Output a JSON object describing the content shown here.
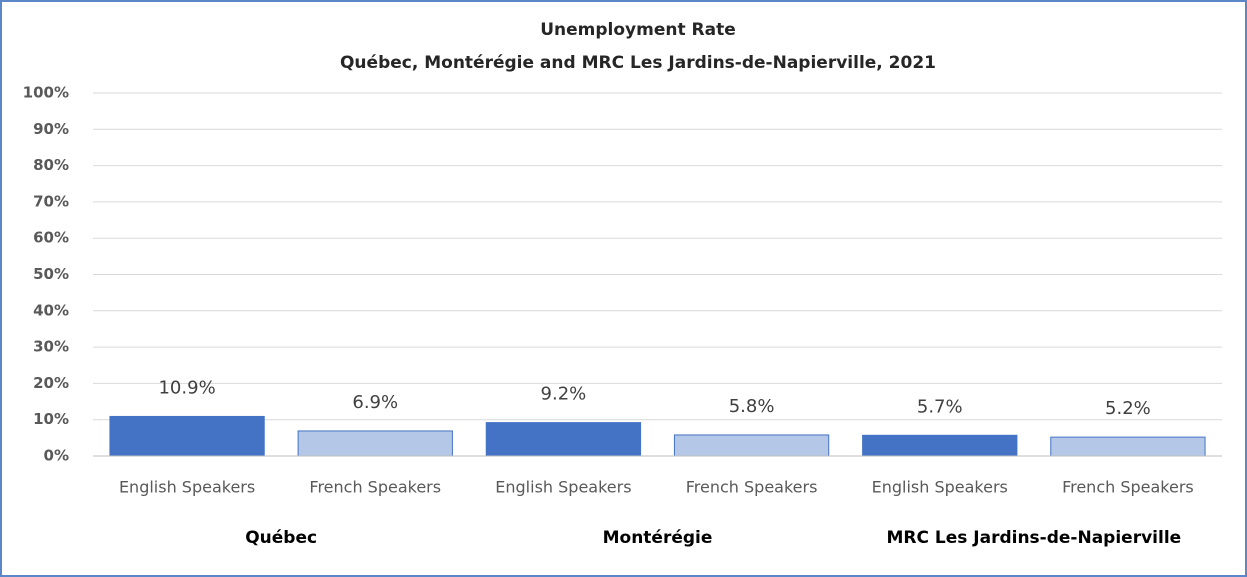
{
  "chart_data": {
    "type": "bar",
    "title": "Unemployment Rate",
    "subtitle": "Québec, Montérégie and MRC Les Jardins-de-Napierville,  2021",
    "groups": [
      {
        "name": "Québec",
        "categories": [
          "English Speakers",
          "French Speakers"
        ],
        "values": [
          10.9,
          6.9
        ],
        "value_labels": [
          "10.9%",
          "6.9%"
        ],
        "colors": [
          "#4472c4",
          "#b4c7e7"
        ]
      },
      {
        "name": "Montérégie",
        "categories": [
          "English Speakers",
          "French Speakers"
        ],
        "values": [
          9.2,
          5.8
        ],
        "value_labels": [
          "9.2%",
          "5.8%"
        ],
        "colors": [
          "#4472c4",
          "#b4c7e7"
        ]
      },
      {
        "name": "MRC Les Jardins-de-Napierville",
        "categories": [
          "English Speakers",
          "French Speakers"
        ],
        "values": [
          5.7,
          5.2
        ],
        "value_labels": [
          "5.7%",
          "5.2%"
        ],
        "colors": [
          "#4472c4",
          "#b4c7e7"
        ]
      }
    ],
    "ylim": [
      0,
      100
    ],
    "yticks": [
      {
        "value": 0,
        "label": "0%"
      },
      {
        "value": 10,
        "label": "10%"
      },
      {
        "value": 20,
        "label": "20%"
      },
      {
        "value": 30,
        "label": "30%"
      },
      {
        "value": 40,
        "label": "40%"
      },
      {
        "value": 50,
        "label": "50%"
      },
      {
        "value": 60,
        "label": "60%"
      },
      {
        "value": 70,
        "label": "70%"
      },
      {
        "value": 80,
        "label": "80%"
      },
      {
        "value": 90,
        "label": "90%"
      },
      {
        "value": 100,
        "label": "100%"
      }
    ],
    "grid": true
  }
}
